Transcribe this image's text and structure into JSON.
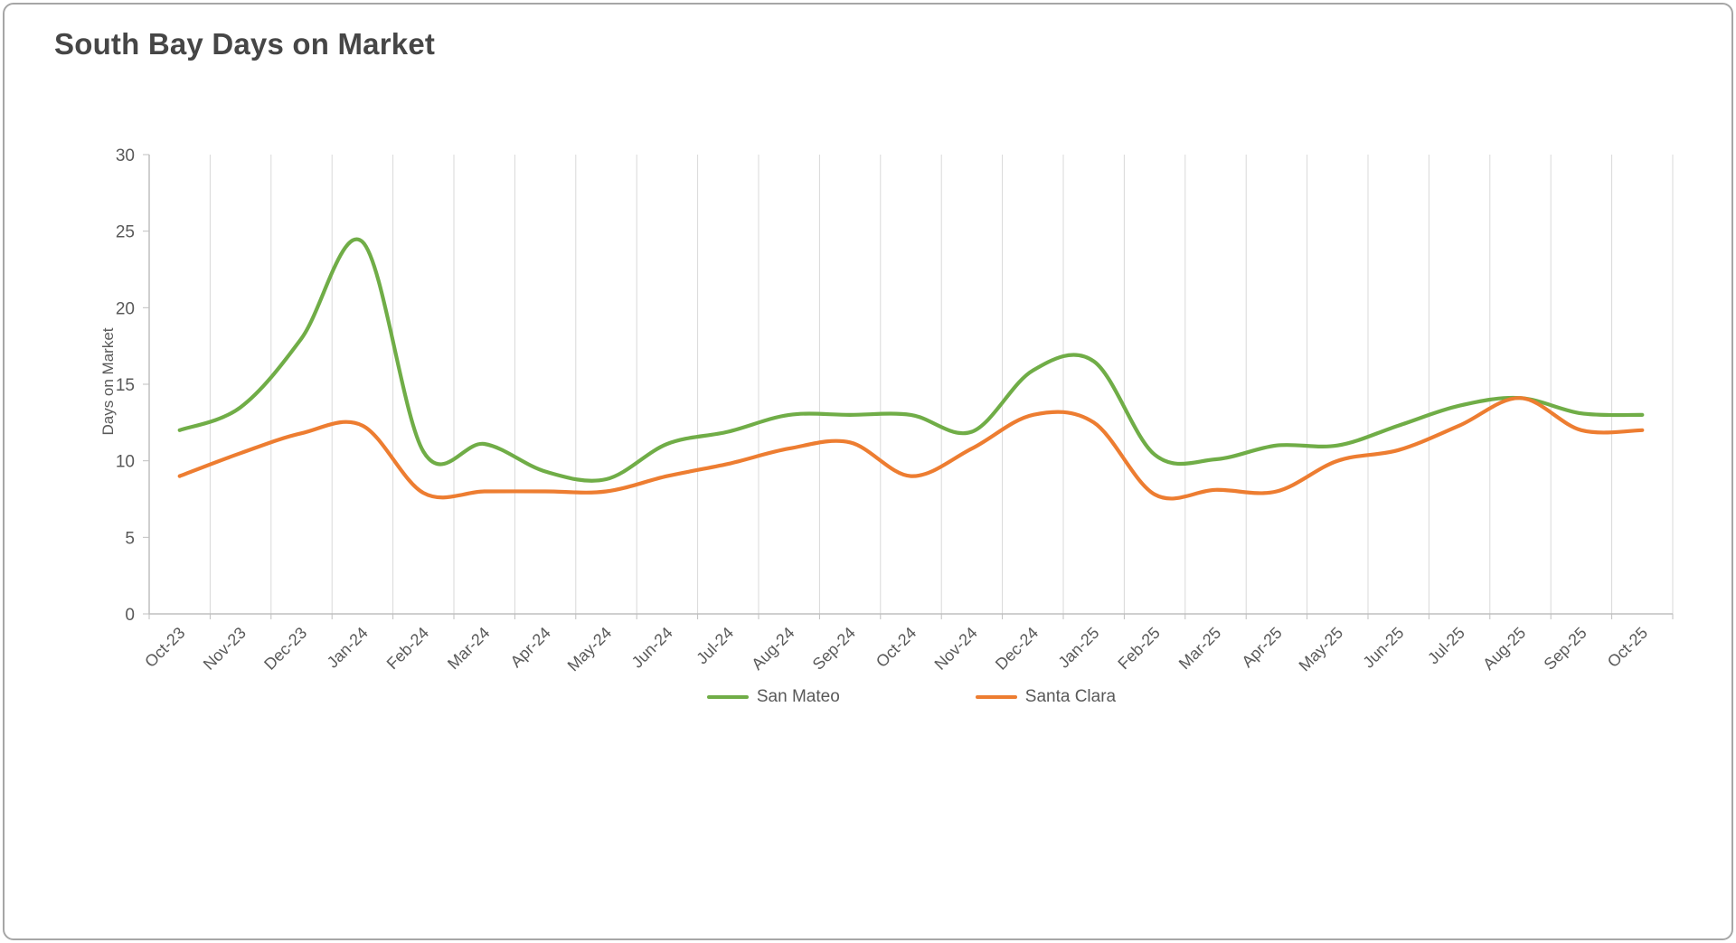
{
  "page": {
    "background": "#ffffff",
    "border_color": "#a6a6a6"
  },
  "chart_data": {
    "type": "line",
    "title": "South Bay Days on Market",
    "xlabel": "",
    "ylabel": "Days on Market",
    "ylim": [
      0,
      30
    ],
    "ytick_step": 5,
    "yticks": [
      0,
      5,
      10,
      15,
      20,
      25,
      30
    ],
    "grid": "vertical-only",
    "smooth": true,
    "legend_position": "bottom-center",
    "gridline_color": "#d9d9d9",
    "axis_color": "#bfbfbf",
    "tick_label_color": "#595959",
    "categories": [
      "Oct-23",
      "Nov-23",
      "Dec-23",
      "Jan-24",
      "Feb-24",
      "Mar-24",
      "Apr-24",
      "May-24",
      "Jun-24",
      "Jul-24",
      "Aug-24",
      "Sep-24",
      "Oct-24",
      "Nov-24",
      "Dec-24",
      "Jan-25",
      "Feb-25",
      "Mar-25",
      "Apr-25",
      "May-25",
      "Jun-25",
      "Jul-25",
      "Aug-25",
      "Sep-25",
      "Oct-25"
    ],
    "series": [
      {
        "name": "San Mateo",
        "color": "#70ad47",
        "values": [
          12,
          13.5,
          18,
          24.3,
          10.6,
          11.1,
          9.3,
          8.8,
          11.1,
          11.9,
          13,
          13,
          13,
          11.9,
          15.9,
          16.5,
          10.4,
          10.1,
          11,
          11,
          12.3,
          13.6,
          14.1,
          13.1,
          13
        ]
      },
      {
        "name": "Santa Clara",
        "color": "#ed7d31",
        "values": [
          9,
          10.5,
          11.8,
          12.3,
          7.9,
          8,
          8,
          8,
          9,
          9.8,
          10.8,
          11.2,
          9,
          10.8,
          13,
          12.5,
          7.8,
          8.1,
          8,
          10,
          10.7,
          12.3,
          14.1,
          12,
          12
        ]
      }
    ]
  }
}
